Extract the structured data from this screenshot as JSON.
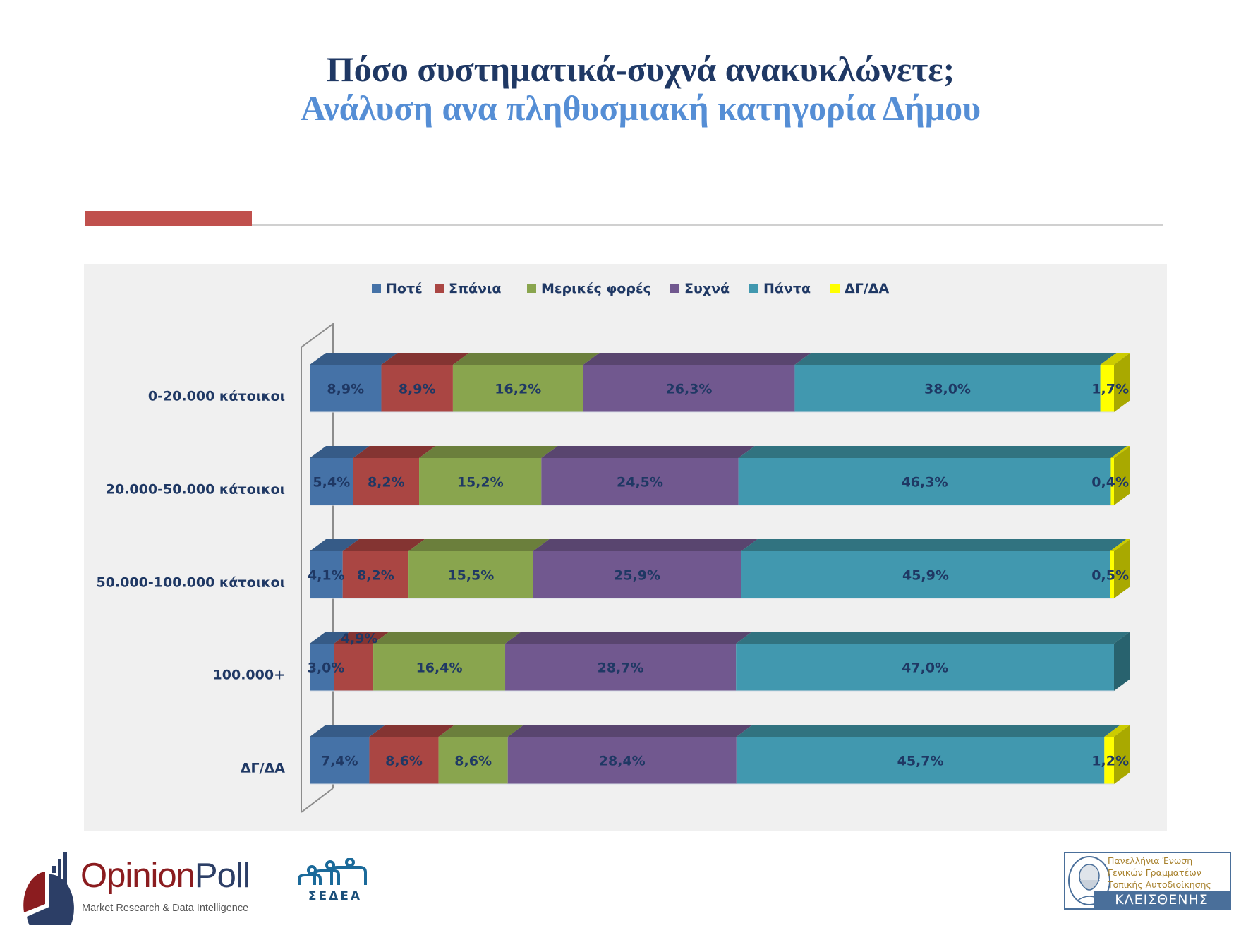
{
  "header": {
    "title": "Πόσο συστηματικά-συχνά ανακυκλώνετε;",
    "subtitle": "Ανάλυση ανα πληθυσμιακή κατηγορία Δήμου"
  },
  "colors": {
    "title": "#1f3864",
    "subtitle": "#558ed5",
    "accent": "#c0504d"
  },
  "chart_data": {
    "type": "bar",
    "orientation": "horizontal",
    "stacked": "100%",
    "style": "3d",
    "title": "",
    "xlabel": "",
    "ylabel": "",
    "xlim": [
      0,
      100
    ],
    "legend_position": "top",
    "grid": false,
    "categories": [
      "0-20.000 κάτοικοι",
      "20.000-50.000 κάτοικοι",
      "50.000-100.000 κάτοικοι",
      "100.000+",
      "ΔΓ/ΔΑ"
    ],
    "series": [
      {
        "name": "Ποτέ",
        "color": "#4572a7",
        "top": "#365b87",
        "values": [
          8.9,
          5.4,
          4.1,
          3.0,
          7.4
        ],
        "labels": [
          "8,9%",
          "5,4%",
          "4,1%",
          "3,0%",
          "7,4%"
        ]
      },
      {
        "name": "Σπάνια",
        "color": "#aa4643",
        "top": "#843432",
        "values": [
          8.9,
          8.2,
          8.2,
          4.9,
          8.6
        ],
        "labels": [
          "8,9%",
          "8,2%",
          "8,2%",
          "4,9%",
          "8,6%"
        ]
      },
      {
        "name": "Μερικές φορές",
        "color": "#89a54e",
        "top": "#6b7f3c",
        "values": [
          16.2,
          15.2,
          15.5,
          16.4,
          8.6
        ],
        "labels": [
          "16,2%",
          "15,2%",
          "15,5%",
          "16,4%",
          "8,6%"
        ]
      },
      {
        "name": "Συχνά",
        "color": "#71588f",
        "top": "#59456f",
        "values": [
          26.3,
          24.5,
          25.9,
          28.7,
          28.4
        ],
        "labels": [
          "26,3%",
          "24,5%",
          "25,9%",
          "28,7%",
          "28,4%"
        ]
      },
      {
        "name": "Πάντα",
        "color": "#4198af",
        "top": "#317380",
        "side": "#28626e",
        "values": [
          38.0,
          46.3,
          45.9,
          47.0,
          45.7
        ],
        "labels": [
          "38,0%",
          "46,3%",
          "45,9%",
          "47,0%",
          "45,7%"
        ]
      },
      {
        "name": "ΔΓ/ΔΑ",
        "color": "#ffff00",
        "top": "#cccc00",
        "side": "#a9a900",
        "values": [
          1.7,
          0.4,
          0.5,
          0.0,
          1.2
        ],
        "labels": [
          "1,7%",
          "0,4%",
          "0,5%",
          "",
          "1,2%"
        ]
      }
    ]
  },
  "logos": {
    "opinionpoll": {
      "name_part1": "Opinion",
      "name_part2": "Poll",
      "tagline": "Market Research & Data Intelligence"
    },
    "sedea": {
      "text": "ΣΕΔΕΑ"
    },
    "kleisthenis": {
      "line1": "Πανελλήνια Ένωση",
      "line2": "Γενικών Γραμματέων",
      "line3": "Τοπικής Αυτοδιοίκησης",
      "band": "ΚΛΕΙΣΘΕΝΗΣ"
    }
  }
}
